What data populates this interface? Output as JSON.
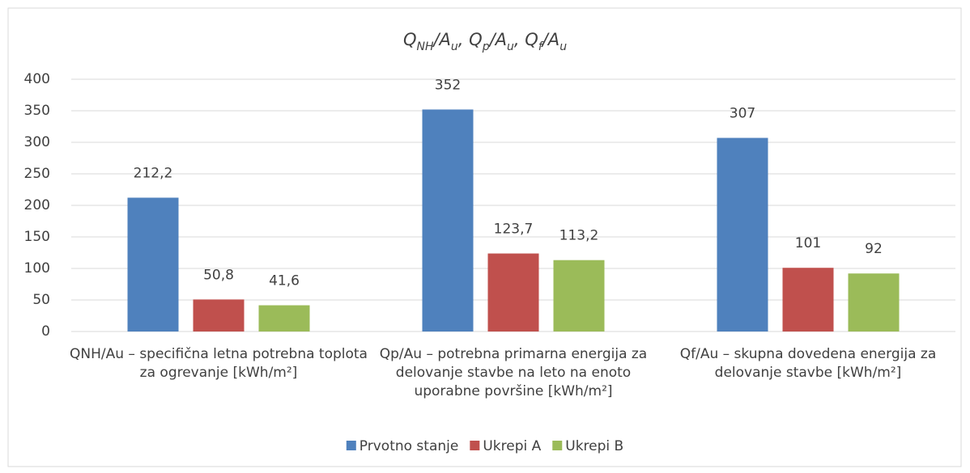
{
  "chart_data": {
    "type": "bar",
    "title": [
      {
        "text": "Q"
      },
      {
        "text": "NH",
        "sub": true
      },
      {
        "text": "/A"
      },
      {
        "text": "u",
        "sub": true
      },
      {
        "text": ", Q"
      },
      {
        "text": "p",
        "sub": true
      },
      {
        "text": "/A"
      },
      {
        "text": "u",
        "sub": true
      },
      {
        "text": ", Q"
      },
      {
        "text": "f",
        "sub": true
      },
      {
        "text": "/A"
      },
      {
        "text": "u",
        "sub": true
      }
    ],
    "categories": [
      "QNH/Au – specifična letna potrebna toplota za ogrevanje [kWh/m²]",
      "Qp/Au – potrebna primarna energija za delovanje stavbe na leto na enoto uporabne površine [kWh/m²]",
      "Qf/Au – skupna dovedena energija za delovanje stavbe [kWh/m²]"
    ],
    "series": [
      {
        "name": "Prvotno stanje",
        "color": "#4f81bd",
        "values": [
          212.2,
          352,
          307
        ],
        "value_labels": [
          "212,2",
          "352",
          "307"
        ]
      },
      {
        "name": "Ukrepi A",
        "color": "#c0504d",
        "values": [
          50.8,
          123.7,
          101
        ],
        "value_labels": [
          "50,8",
          "123,7",
          "101"
        ]
      },
      {
        "name": "Ukrepi B",
        "color": "#9bbb59",
        "values": [
          41.6,
          113.2,
          92
        ],
        "value_labels": [
          "41,6",
          "113,2",
          "92"
        ]
      }
    ],
    "ylim": [
      0,
      400
    ],
    "yticks": [
      0,
      50,
      100,
      150,
      200,
      250,
      300,
      350,
      400
    ],
    "grid": true,
    "legend": "bottom"
  }
}
